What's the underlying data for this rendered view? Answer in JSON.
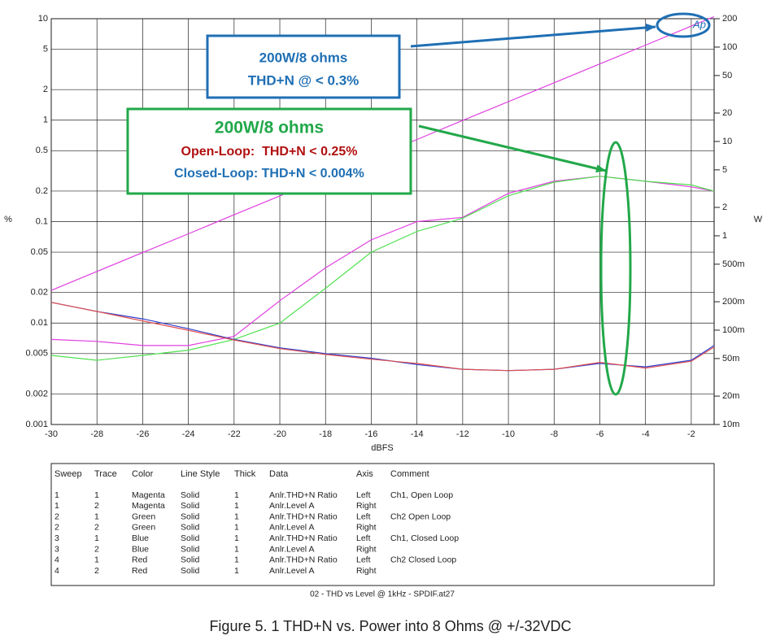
{
  "chart_data": {
    "type": "line",
    "xlabel": "dBFS",
    "ylabel": "%",
    "y2label": "W",
    "logo": "Ap",
    "x": [
      -30,
      -28,
      -26,
      -24,
      -22,
      -20,
      -18,
      -16,
      -14,
      -12,
      -10,
      -8,
      -6,
      -4,
      -2,
      -1
    ],
    "xlim": [
      -30,
      -1
    ],
    "xticks": [
      -30,
      -28,
      -26,
      -24,
      -22,
      -20,
      -18,
      -16,
      -14,
      -12,
      -10,
      -8,
      -6,
      -4,
      -2
    ],
    "ylim": [
      0.001,
      10
    ],
    "yscale": "log",
    "yticks": [
      10,
      5,
      2,
      1,
      0.5,
      0.2,
      0.1,
      0.05,
      0.02,
      0.01,
      0.005,
      0.002,
      0.001
    ],
    "y2lim": [
      0.01,
      200
    ],
    "y2scale": "log",
    "y2ticks": [
      200,
      100,
      50,
      20,
      10,
      5,
      2,
      1,
      {
        "value": 0.5,
        "label": "500m"
      },
      {
        "value": 0.2,
        "label": "200m"
      },
      {
        "value": 0.1,
        "label": "100m"
      },
      {
        "value": 0.05,
        "label": "50m"
      },
      {
        "value": 0.02,
        "label": "20m"
      },
      {
        "value": 0.01,
        "label": "10m"
      }
    ],
    "grid": true,
    "series": [
      {
        "name": "Ch1, Open Loop",
        "color": "#e040e0",
        "axis": "y",
        "values": [
          0.0069,
          0.0066,
          0.006,
          0.006,
          0.0074,
          0.0166,
          0.035,
          0.066,
          0.1,
          0.11,
          0.19,
          0.25,
          0.28,
          0.25,
          0.22,
          0.2
        ]
      },
      {
        "name": "Ch2 Open Loop",
        "color": "#50e050",
        "axis": "y",
        "values": [
          0.0048,
          0.0043,
          0.0048,
          0.0054,
          0.0069,
          0.01,
          0.022,
          0.05,
          0.08,
          0.108,
          0.18,
          0.245,
          0.28,
          0.25,
          0.23,
          0.2
        ]
      },
      {
        "name": "Ch1, Closed Loop",
        "color": "#3040d0",
        "axis": "y",
        "values": [
          0.016,
          0.013,
          0.011,
          0.0088,
          0.0069,
          0.0057,
          0.005,
          0.0045,
          0.0039,
          0.0035,
          0.0034,
          0.0035,
          0.004,
          0.0037,
          0.0043,
          0.006
        ]
      },
      {
        "name": "Ch2 Closed Loop",
        "color": "#e05050",
        "axis": "y",
        "values": [
          0.016,
          0.013,
          0.0105,
          0.0085,
          0.0068,
          0.0056,
          0.0049,
          0.0044,
          0.004,
          0.0035,
          0.0034,
          0.0035,
          0.0041,
          0.0036,
          0.0042,
          0.0058
        ]
      },
      {
        "name": "Anlr.Level A",
        "color": "#e040e0",
        "axis": "y2",
        "values": [
          0.264,
          0.419,
          0.664,
          1.05,
          1.67,
          2.65,
          4.19,
          6.64,
          10.5,
          16.7,
          26.4,
          41.9,
          66.4,
          105,
          167,
          210
        ]
      }
    ],
    "annotations": [
      {
        "color": "#1f6fb4",
        "lines": [
          {
            "text": "200W/8 ohms",
            "color": "#1f6fb4"
          },
          {
            "text": "THD+N @ < 0.3%",
            "color": "#1f6fb4"
          }
        ]
      },
      {
        "color": "#22a84a",
        "lines": [
          {
            "text": "200W/8 ohms",
            "color": "#22a84a"
          },
          {
            "text": "Open-Loop:  THD+N < 0.25%",
            "color": "#b01010"
          },
          {
            "text": "Closed-Loop: THD+N < 0.004%",
            "color": "#1f6fb4"
          }
        ]
      }
    ]
  },
  "legend_table": {
    "header": [
      "Sweep",
      "Trace",
      "Color",
      "Line Style",
      "Thick",
      "Data",
      "Axis",
      "Comment"
    ],
    "rows": [
      [
        "1",
        "1",
        "Magenta",
        "Solid",
        "1",
        "Anlr.THD+N Ratio",
        "Left",
        "Ch1, Open Loop"
      ],
      [
        "1",
        "2",
        "Magenta",
        "Solid",
        "1",
        "Anlr.Level A",
        "Right",
        ""
      ],
      [
        "2",
        "1",
        "Green",
        "Solid",
        "1",
        "Anlr.THD+N Ratio",
        "Left",
        "Ch2 Open Loop"
      ],
      [
        "2",
        "2",
        "Green",
        "Solid",
        "1",
        "Anlr.Level A",
        "Right",
        ""
      ],
      [
        "3",
        "1",
        "Blue",
        "Solid",
        "1",
        "Anlr.THD+N Ratio",
        "Left",
        "Ch1, Closed Loop"
      ],
      [
        "3",
        "2",
        "Blue",
        "Solid",
        "1",
        "Anlr.Level A",
        "Right",
        ""
      ],
      [
        "4",
        "1",
        "Red",
        "Solid",
        "1",
        "Anlr.THD+N Ratio",
        "Left",
        "Ch2 Closed Loop"
      ],
      [
        "4",
        "2",
        "Red",
        "Solid",
        "1",
        "Anlr.Level A",
        "Right",
        ""
      ]
    ],
    "footer": "02 - THD vs Level @ 1kHz - SPDIF.at27"
  },
  "caption": "Figure 5. 1 THD+N vs. Power into 8 Ohms @ +/-32VDC"
}
